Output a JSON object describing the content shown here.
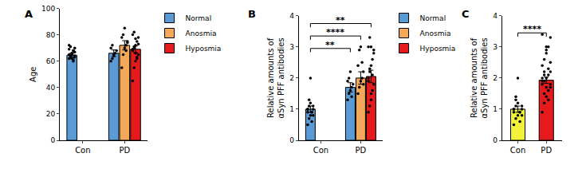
{
  "chart_data": [
    {
      "type": "bar",
      "panel": "A",
      "y_label": [
        "Age"
      ],
      "categories": [
        "Con",
        "PD"
      ],
      "ylim": [
        0,
        100
      ],
      "yticks": [
        0,
        20,
        40,
        60,
        80,
        100
      ],
      "grid": false,
      "legend": "right",
      "series": [
        {
          "name": "Normal",
          "color": "#5b9bd5",
          "values": [
            64.5,
            66
          ],
          "errors": [
            1.5,
            2.5
          ],
          "points": [
            [
              62,
              64,
              66,
              68,
              70,
              72,
              63,
              65,
              61,
              67,
              69,
              64,
              66,
              60,
              63,
              65,
              71,
              62,
              68,
              64
            ],
            [
              60,
              62,
              65,
              66,
              68,
              70,
              72,
              64
            ]
          ]
        },
        {
          "name": "Anosmia",
          "color": "#f4a95a",
          "values": [
            null,
            72
          ],
          "errors": [
            null,
            3.5
          ],
          "points": [
            [],
            [
              55,
              65,
              70,
              72,
              75,
              78,
              80,
              85,
              68,
              74
            ]
          ]
        },
        {
          "name": "Hyposmia",
          "color": "#e41a1c",
          "values": [
            null,
            69
          ],
          "errors": [
            null,
            2.5
          ],
          "points": [
            [],
            [
              45,
              55,
              60,
              62,
              65,
              68,
              70,
              72,
              75,
              78,
              80,
              82,
              66,
              63,
              73,
              69,
              71,
              77
            ]
          ]
        }
      ]
    },
    {
      "type": "bar",
      "panel": "B",
      "y_label": [
        "Relative amounts of",
        "αSyn PFF antibodies"
      ],
      "categories": [
        "Con",
        "PD"
      ],
      "ylim": [
        0,
        4
      ],
      "yticks": [
        0,
        1,
        2,
        3,
        4
      ],
      "grid": false,
      "legend": "right",
      "series": [
        {
          "name": "Normal",
          "color": "#5b9bd5",
          "values": [
            1.0,
            1.7
          ],
          "errors": [
            0.1,
            0.15
          ],
          "points": [
            [
              0.5,
              0.7,
              0.8,
              0.9,
              1.0,
              1.0,
              1.1,
              1.2,
              0.9,
              0.8,
              1.0,
              1.3,
              2.0,
              0.6,
              1.1,
              0.9
            ],
            [
              1.3,
              1.5,
              1.6,
              1.7,
              1.8,
              1.9,
              2.0,
              2.2,
              1.4
            ]
          ]
        },
        {
          "name": "Anosmia",
          "color": "#f4a95a",
          "values": [
            null,
            2.0
          ],
          "errors": [
            null,
            0.2
          ],
          "points": [
            [],
            [
              1.5,
              1.7,
              1.9,
              2.0,
              2.2,
              2.4,
              2.9,
              3.0,
              2.5,
              1.8
            ]
          ]
        },
        {
          "name": "Hyposmia",
          "color": "#e41a1c",
          "values": [
            null,
            2.05
          ],
          "errors": [
            null,
            0.2
          ],
          "points": [
            [],
            [
              0.9,
              1.1,
              1.3,
              1.6,
              1.8,
              2.0,
              2.2,
              2.4,
              2.6,
              2.8,
              3.0,
              3.3,
              1.5,
              2.1,
              2.9,
              1.9,
              2.3,
              3.0
            ]
          ]
        }
      ],
      "significance": [
        {
          "from": [
            0,
            0
          ],
          "to": [
            1,
            0
          ],
          "y": 2.95,
          "label": "**"
        },
        {
          "from": [
            0,
            0
          ],
          "to": [
            1,
            1
          ],
          "y": 3.35,
          "label": "****"
        },
        {
          "from": [
            0,
            0
          ],
          "to": [
            1,
            2
          ],
          "y": 3.75,
          "label": "**"
        }
      ]
    },
    {
      "type": "bar",
      "panel": "C",
      "y_label": [
        "Relative amounts of",
        "αSyn PFF antibodies"
      ],
      "categories": [
        "Con",
        "PD"
      ],
      "ylim": [
        0,
        4
      ],
      "yticks": [
        0,
        1,
        2,
        3,
        4
      ],
      "grid": false,
      "values": [
        1.0,
        1.93
      ],
      "errors": [
        0.1,
        0.1
      ],
      "colors": [
        "#f2f23a",
        "#e41a1c"
      ],
      "points": [
        [
          0.5,
          0.7,
          0.8,
          0.9,
          1.0,
          1.0,
          1.1,
          1.2,
          0.9,
          0.8,
          1.0,
          1.3,
          2.0,
          0.6,
          1.1,
          0.9,
          1.4
        ],
        [
          0.9,
          1.2,
          1.4,
          1.6,
          1.7,
          1.8,
          1.9,
          2.0,
          2.1,
          2.2,
          2.4,
          2.6,
          2.8,
          3.0,
          3.3,
          3.4,
          1.5,
          1.7,
          2.3,
          2.5,
          1.9,
          2.1,
          2.9,
          1.3,
          1.8,
          2.0,
          2.2,
          3.0
        ]
      ],
      "significance": [
        {
          "from": [
            0,
            0
          ],
          "to": [
            1,
            0
          ],
          "y": 3.45,
          "label": "****"
        }
      ]
    }
  ]
}
